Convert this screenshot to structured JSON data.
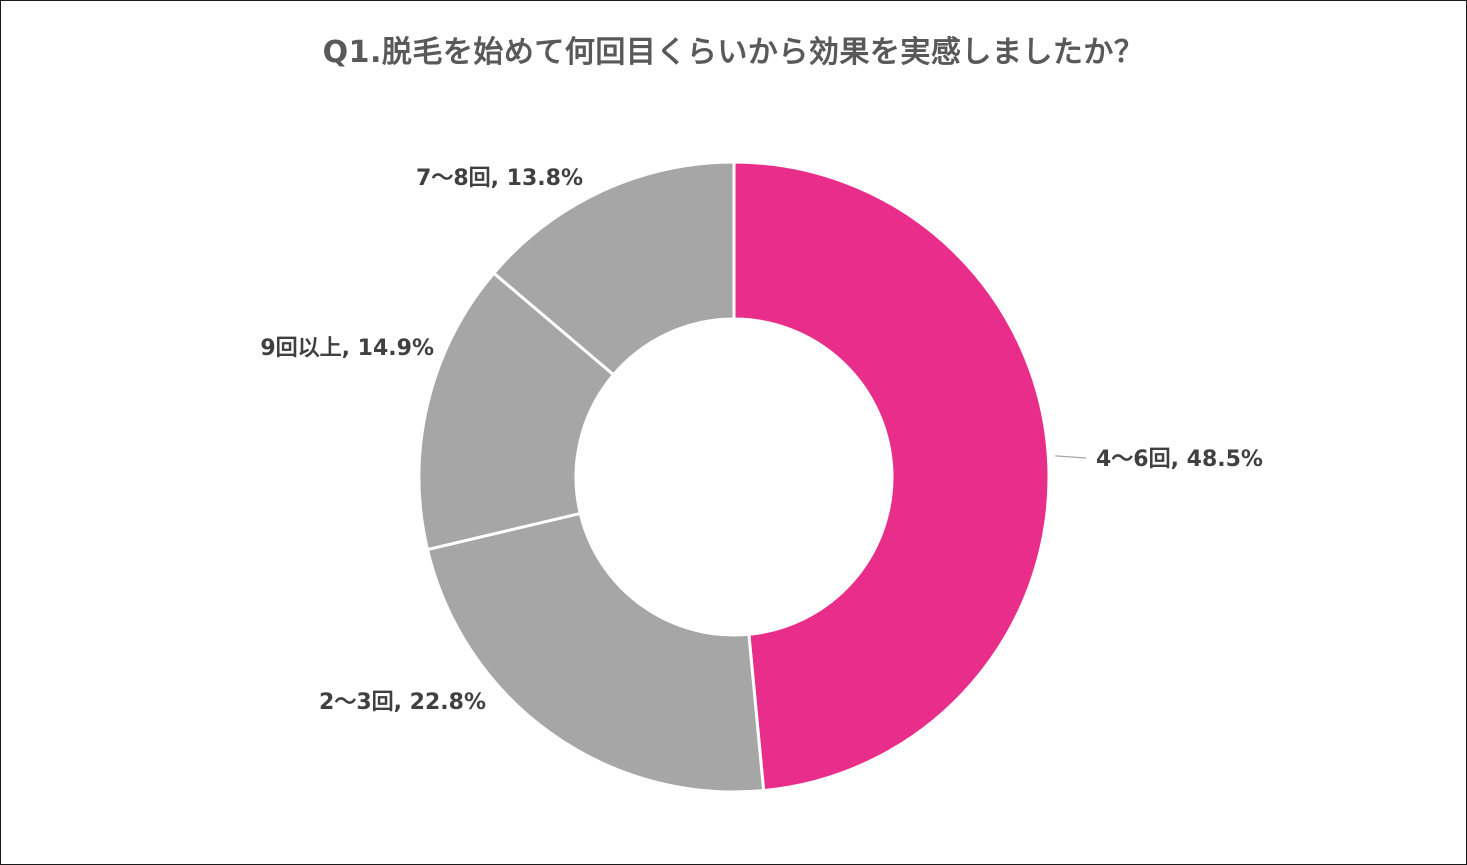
{
  "chart_data": {
    "type": "pie",
    "title": "Q1.脱毛を始めて何回目くらいから効果を実感しましたか？",
    "donut": true,
    "slices": [
      {
        "label": "4〜6回",
        "value": 48.5,
        "display": "4〜6回, 48.5%",
        "color": "#E82E8A"
      },
      {
        "label": "2〜3回",
        "value": 22.8,
        "display": "2〜3回, 22.8%",
        "color": "#A6A6A6"
      },
      {
        "label": "9回以上",
        "value": 14.9,
        "display": "9回以上, 14.9%",
        "color": "#A6A6A6"
      },
      {
        "label": "7〜8回",
        "value": 13.8,
        "display": "7〜8回, 13.8%",
        "color": "#A6A6A6"
      }
    ],
    "start_angle_deg": 0,
    "direction": "clockwise",
    "legend": "none"
  }
}
